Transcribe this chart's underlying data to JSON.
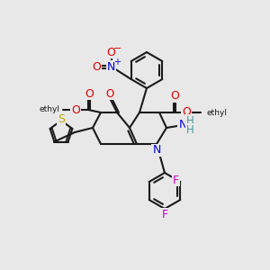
{
  "bg_color": "#e8e8e8",
  "colors": {
    "N": "#0000dd",
    "O": "#dd0000",
    "S": "#bbaa00",
    "F": "#cc00cc",
    "C": "#1a1a1a",
    "H": "#449999"
  },
  "lw": 1.5,
  "fs": 8.5
}
